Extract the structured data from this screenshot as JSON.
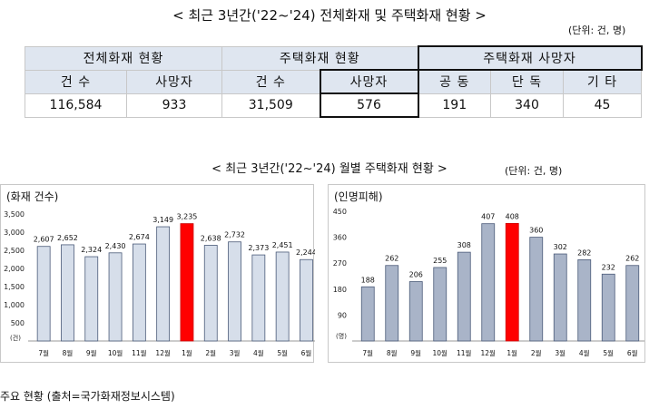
{
  "summary": {
    "title": "< 최근 3년간('22~'24) 전체화재 및 주택화재 현황 >",
    "unit": "(단위: 건, 명)",
    "groups": [
      "전체화재 현황",
      "주택화재 현황",
      "주택화재 사망자"
    ],
    "headers": [
      "건 수",
      "사망자",
      "건 수",
      "사망자",
      "공 동",
      "단 독",
      "기 타"
    ],
    "values": [
      "116,584",
      "933",
      "31,509",
      "576",
      "191",
      "340",
      "45"
    ]
  },
  "monthly": {
    "title": "< 최근 3년간('22~'24) 월별 주택화재 현황 >",
    "unit": "(단위: 건, 명)"
  },
  "chart_data": [
    {
      "type": "bar",
      "title": "(화재 건수)",
      "categories": [
        "7월",
        "8월",
        "9월",
        "10월",
        "11월",
        "12월",
        "1월",
        "2월",
        "3월",
        "4월",
        "5월",
        "6월"
      ],
      "values": [
        2607,
        2652,
        2324,
        2430,
        2674,
        3149,
        3235,
        2638,
        2732,
        2373,
        2451,
        2244
      ],
      "value_labels": [
        "2,607",
        "2,652",
        "2,324",
        "2,430",
        "2,674",
        "3,149",
        "3,235",
        "2,638",
        "2,732",
        "2,373",
        "2,451",
        "2,244"
      ],
      "highlight_category": "1월",
      "yticks": [
        "3,500",
        "3,000",
        "2,500",
        "2,000",
        "1,500",
        "1,000",
        "500"
      ],
      "ytick_values": [
        3500,
        3000,
        2500,
        2000,
        1500,
        1000,
        500
      ],
      "yunit": "(건)",
      "ylim": [
        0,
        3500
      ],
      "bar_color": "#d6deea",
      "highlight_color": "#ff0000"
    },
    {
      "type": "bar",
      "title": "(인명피해)",
      "categories": [
        "7월",
        "8월",
        "9월",
        "10월",
        "11월",
        "12월",
        "1월",
        "2월",
        "3월",
        "4월",
        "5월",
        "6월"
      ],
      "values": [
        188,
        262,
        206,
        255,
        308,
        407,
        408,
        360,
        302,
        282,
        232,
        262
      ],
      "value_labels": [
        "188",
        "262",
        "206",
        "255",
        "308",
        "407",
        "408",
        "360",
        "302",
        "282",
        "232",
        "262"
      ],
      "highlight_category": "1월",
      "yticks": [
        "450",
        "360",
        "270",
        "180",
        "90"
      ],
      "ytick_values": [
        450,
        360,
        270,
        180,
        90
      ],
      "yunit": "(명)",
      "ylim": [
        0,
        450
      ],
      "bar_color": "#a9b4c8",
      "highlight_color": "#ff0000"
    }
  ],
  "footer": "주요 현황 (출처=국가화재정보시스템)"
}
